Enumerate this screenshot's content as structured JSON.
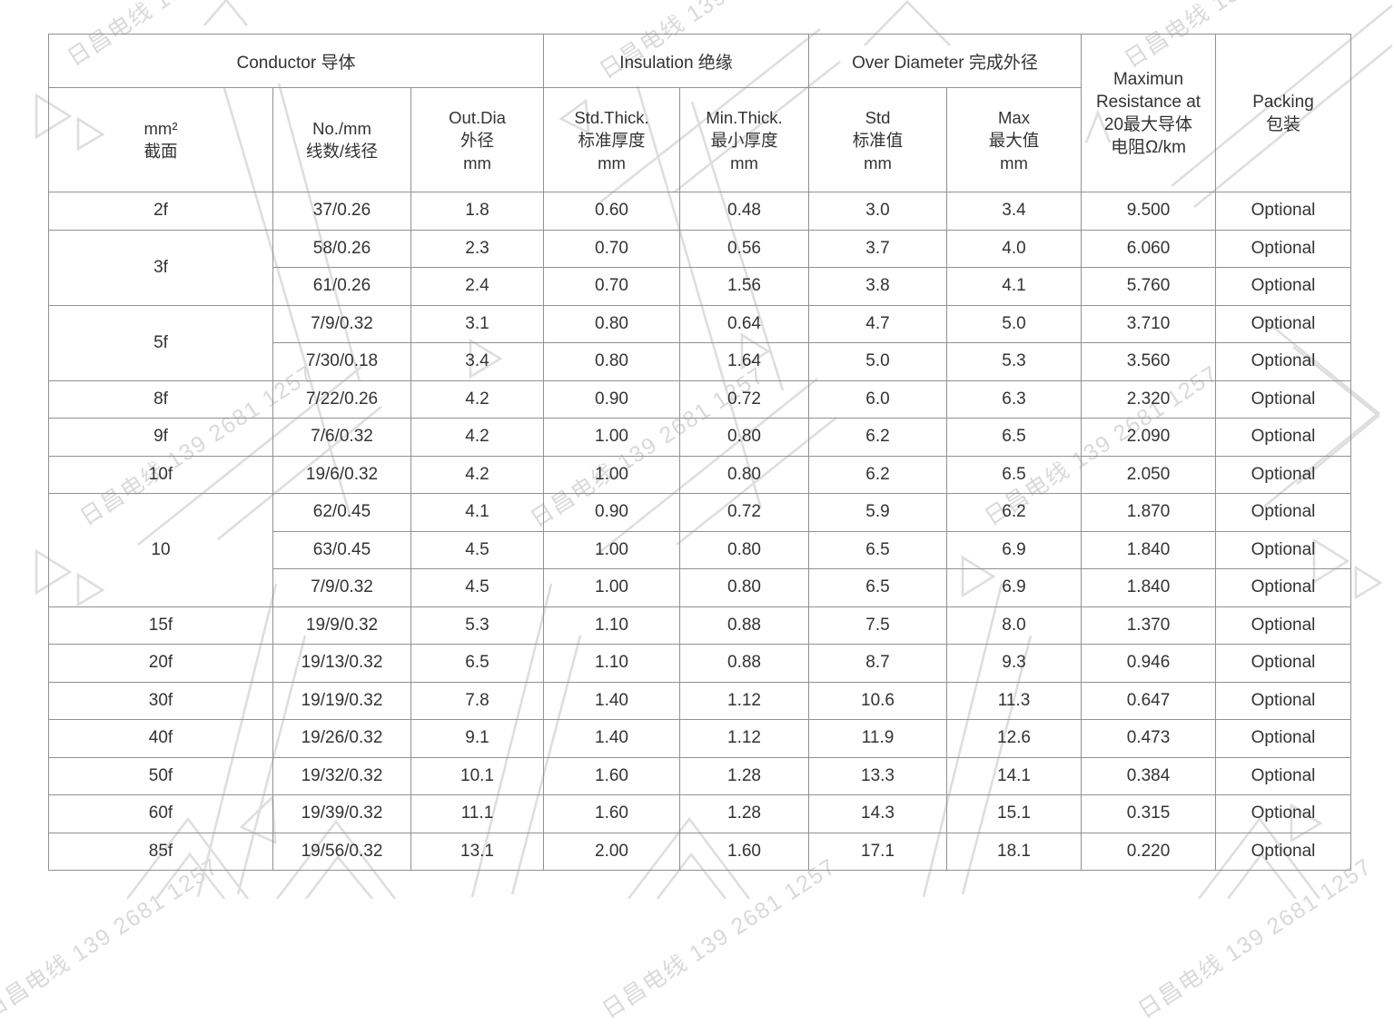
{
  "watermark": {
    "text": "日昌电线 139 2681 1257",
    "color": "#d9d9d9",
    "shape_color": "#dedede"
  },
  "table": {
    "border_color": "#919191",
    "text_color": "#333333",
    "groups": [
      {
        "label": "Conductor 导体",
        "colspan": 3
      },
      {
        "label": "Insulation 绝缘",
        "colspan": 2
      },
      {
        "label": "Over Diameter 完成外径",
        "colspan": 2
      }
    ],
    "columns": [
      {
        "id": "size",
        "lines": [
          "mm²",
          "截面"
        ]
      },
      {
        "id": "no_mm",
        "lines": [
          "No./mm",
          "线数/线径"
        ]
      },
      {
        "id": "out_dia",
        "lines": [
          "Out.Dia",
          "外径",
          "mm"
        ]
      },
      {
        "id": "std_thick",
        "lines": [
          "Std.Thick.",
          "标准厚度",
          "mm"
        ]
      },
      {
        "id": "min_thick",
        "lines": [
          "Min.Thick.",
          "最小厚度",
          "mm"
        ]
      },
      {
        "id": "od_std",
        "lines": [
          "Std",
          "标准值",
          "mm"
        ]
      },
      {
        "id": "od_max",
        "lines": [
          "Max",
          "最大值",
          "mm"
        ]
      },
      {
        "id": "resistance",
        "lines": [
          "Maximun",
          "Resistance at",
          "20最大导体",
          "电阻Ω/km"
        ],
        "full_height": true
      },
      {
        "id": "packing",
        "lines": [
          "Packing",
          "包装"
        ],
        "full_height": true
      }
    ],
    "data_column_ids": [
      "no_mm",
      "out_dia",
      "std_thick",
      "min_thick",
      "od_std",
      "od_max",
      "resistance",
      "packing"
    ],
    "row_groups": [
      {
        "size": "2f",
        "rows": [
          [
            "37/0.26",
            "1.8",
            "0.60",
            "0.48",
            "3.0",
            "3.4",
            "9.500",
            "Optional"
          ]
        ]
      },
      {
        "size": "3f",
        "rows": [
          [
            "58/0.26",
            "2.3",
            "0.70",
            "0.56",
            "3.7",
            "4.0",
            "6.060",
            "Optional"
          ],
          [
            "61/0.26",
            "2.4",
            "0.70",
            "1.56",
            "3.8",
            "4.1",
            "5.760",
            "Optional"
          ]
        ]
      },
      {
        "size": "5f",
        "rows": [
          [
            "7/9/0.32",
            "3.1",
            "0.80",
            "0.64",
            "4.7",
            "5.0",
            "3.710",
            "Optional"
          ],
          [
            "7/30/0.18",
            "3.4",
            "0.80",
            "1.64",
            "5.0",
            "5.3",
            "3.560",
            "Optional"
          ]
        ]
      },
      {
        "size": "8f",
        "rows": [
          [
            "7/22/0.26",
            "4.2",
            "0.90",
            "0.72",
            "6.0",
            "6.3",
            "2.320",
            "Optional"
          ]
        ]
      },
      {
        "size": "9f",
        "rows": [
          [
            "7/6/0.32",
            "4.2",
            "1.00",
            "0.80",
            "6.2",
            "6.5",
            "2.090",
            "Optional"
          ]
        ]
      },
      {
        "size": "10f",
        "rows": [
          [
            "19/6/0.32",
            "4.2",
            "1.00",
            "0.80",
            "6.2",
            "6.5",
            "2.050",
            "Optional"
          ]
        ]
      },
      {
        "size": "10",
        "rows": [
          [
            "62/0.45",
            "4.1",
            "0.90",
            "0.72",
            "5.9",
            "6.2",
            "1.870",
            "Optional"
          ],
          [
            "63/0.45",
            "4.5",
            "1.00",
            "0.80",
            "6.5",
            "6.9",
            "1.840",
            "Optional"
          ],
          [
            "7/9/0.32",
            "4.5",
            "1.00",
            "0.80",
            "6.5",
            "6.9",
            "1.840",
            "Optional"
          ]
        ]
      },
      {
        "size": "15f",
        "rows": [
          [
            "19/9/0.32",
            "5.3",
            "1.10",
            "0.88",
            "7.5",
            "8.0",
            "1.370",
            "Optional"
          ]
        ]
      },
      {
        "size": "20f",
        "rows": [
          [
            "19/13/0.32",
            "6.5",
            "1.10",
            "0.88",
            "8.7",
            "9.3",
            "0.946",
            "Optional"
          ]
        ]
      },
      {
        "size": "30f",
        "rows": [
          [
            "19/19/0.32",
            "7.8",
            "1.40",
            "1.12",
            "10.6",
            "11.3",
            "0.647",
            "Optional"
          ]
        ]
      },
      {
        "size": "40f",
        "rows": [
          [
            "19/26/0.32",
            "9.1",
            "1.40",
            "1.12",
            "11.9",
            "12.6",
            "0.473",
            "Optional"
          ]
        ]
      },
      {
        "size": "50f",
        "rows": [
          [
            "19/32/0.32",
            "10.1",
            "1.60",
            "1.28",
            "13.3",
            "14.1",
            "0.384",
            "Optional"
          ]
        ]
      },
      {
        "size": "60f",
        "rows": [
          [
            "19/39/0.32",
            "11.1",
            "1.60",
            "1.28",
            "14.3",
            "15.1",
            "0.315",
            "Optional"
          ]
        ]
      },
      {
        "size": "85f",
        "rows": [
          [
            "19/56/0.32",
            "13.1",
            "2.00",
            "1.60",
            "17.1",
            "18.1",
            "0.220",
            "Optional"
          ]
        ]
      }
    ]
  }
}
